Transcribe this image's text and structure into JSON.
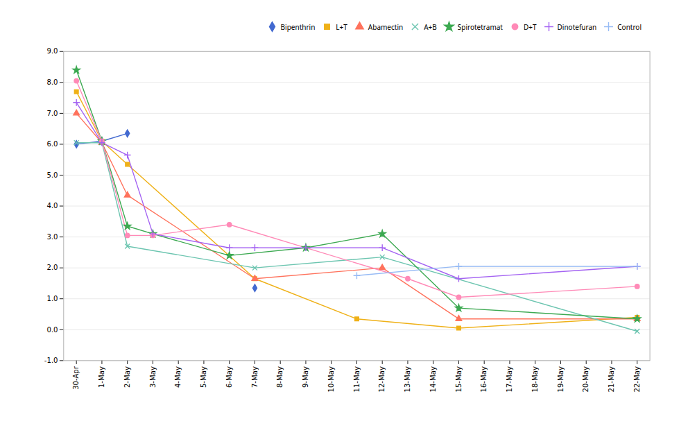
{
  "chart_data": {
    "type": "line",
    "categories": [
      "30-Apr",
      "1-May",
      "2-May",
      "3-May",
      "4-May",
      "5-May",
      "6-May",
      "7-May",
      "8-May",
      "9-May",
      "10-May",
      "11-May",
      "12-May",
      "13-May",
      "14-May",
      "15-May",
      "16-May",
      "17-May",
      "18-May",
      "19-May",
      "20-May",
      "21-May",
      "22-May"
    ],
    "series": [
      {
        "name": "Bipenthrin",
        "marker": "diamond",
        "x": [
          "30-Apr",
          "1-May",
          "2-May",
          "6-May",
          "7-May"
        ],
        "values": [
          6.0,
          6.1,
          6.35,
          null,
          1.35
        ]
      },
      {
        "name": "L+T",
        "marker": "square",
        "x": [
          "30-Apr",
          "1-May",
          "2-May",
          "7-May",
          "11-May",
          "15-May",
          "22-May"
        ],
        "values": [
          7.7,
          6.1,
          5.35,
          1.65,
          0.35,
          0.05,
          0.4
        ]
      },
      {
        "name": "Abamectin",
        "marker": "triangle",
        "x": [
          "30-Apr",
          "1-May",
          "2-May",
          "7-May",
          "12-May",
          "15-May",
          "22-May"
        ],
        "values": [
          7.0,
          6.05,
          4.35,
          1.65,
          2.0,
          0.35,
          0.35
        ]
      },
      {
        "name": "A+B",
        "marker": "times",
        "x": [
          "30-Apr",
          "1-May",
          "2-May",
          "7-May",
          "12-May",
          "22-May"
        ],
        "values": [
          6.05,
          6.05,
          2.7,
          2.0,
          2.35,
          -0.05
        ]
      },
      {
        "name": "Spirotetramat",
        "marker": "star",
        "x": [
          "30-Apr",
          "1-May",
          "2-May",
          "3-May",
          "6-May",
          "9-May",
          "12-May",
          "15-May",
          "22-May"
        ],
        "values": [
          8.4,
          6.1,
          3.35,
          3.1,
          2.4,
          2.65,
          3.1,
          0.7,
          0.35
        ]
      },
      {
        "name": "D+T",
        "marker": "circle",
        "x": [
          "30-Apr",
          "1-May",
          "2-May",
          "3-May",
          "6-May",
          "13-May",
          "15-May",
          "22-May"
        ],
        "values": [
          8.05,
          6.1,
          3.05,
          3.05,
          3.4,
          1.65,
          1.05,
          1.4
        ]
      },
      {
        "name": "Dinotefuran",
        "marker": "plus",
        "x": [
          "30-Apr",
          "1-May",
          "2-May",
          "3-May",
          "6-May",
          "7-May",
          "9-May",
          "12-May",
          "15-May",
          "22-May"
        ],
        "values": [
          7.35,
          6.05,
          5.65,
          3.1,
          2.65,
          2.65,
          2.65,
          2.65,
          1.65,
          2.05
        ]
      },
      {
        "name": "Control",
        "marker": "plus",
        "x": [
          "11-May",
          "15-May",
          "22-May"
        ],
        "values": [
          1.75,
          2.05,
          2.05
        ]
      }
    ],
    "ylim": [
      -1.0,
      9.0
    ],
    "yticks": [
      {
        "value": -1.0,
        "label": "-1.0"
      },
      {
        "value": 0.0,
        "label": "0.0"
      },
      {
        "value": 1.0,
        "label": "1.0"
      },
      {
        "value": 2.0,
        "label": "2.0"
      },
      {
        "value": 3.0,
        "label": "3.0"
      },
      {
        "value": 4.0,
        "label": "4.0"
      },
      {
        "value": 5.0,
        "label": "5.0"
      },
      {
        "value": 6.0,
        "label": "6.0"
      },
      {
        "value": 7.0,
        "label": "7.0"
      },
      {
        "value": 8.0,
        "label": "8.0"
      },
      {
        "value": 9.0,
        "label": "9.0"
      }
    ],
    "grid": true,
    "legend": "upper right"
  }
}
